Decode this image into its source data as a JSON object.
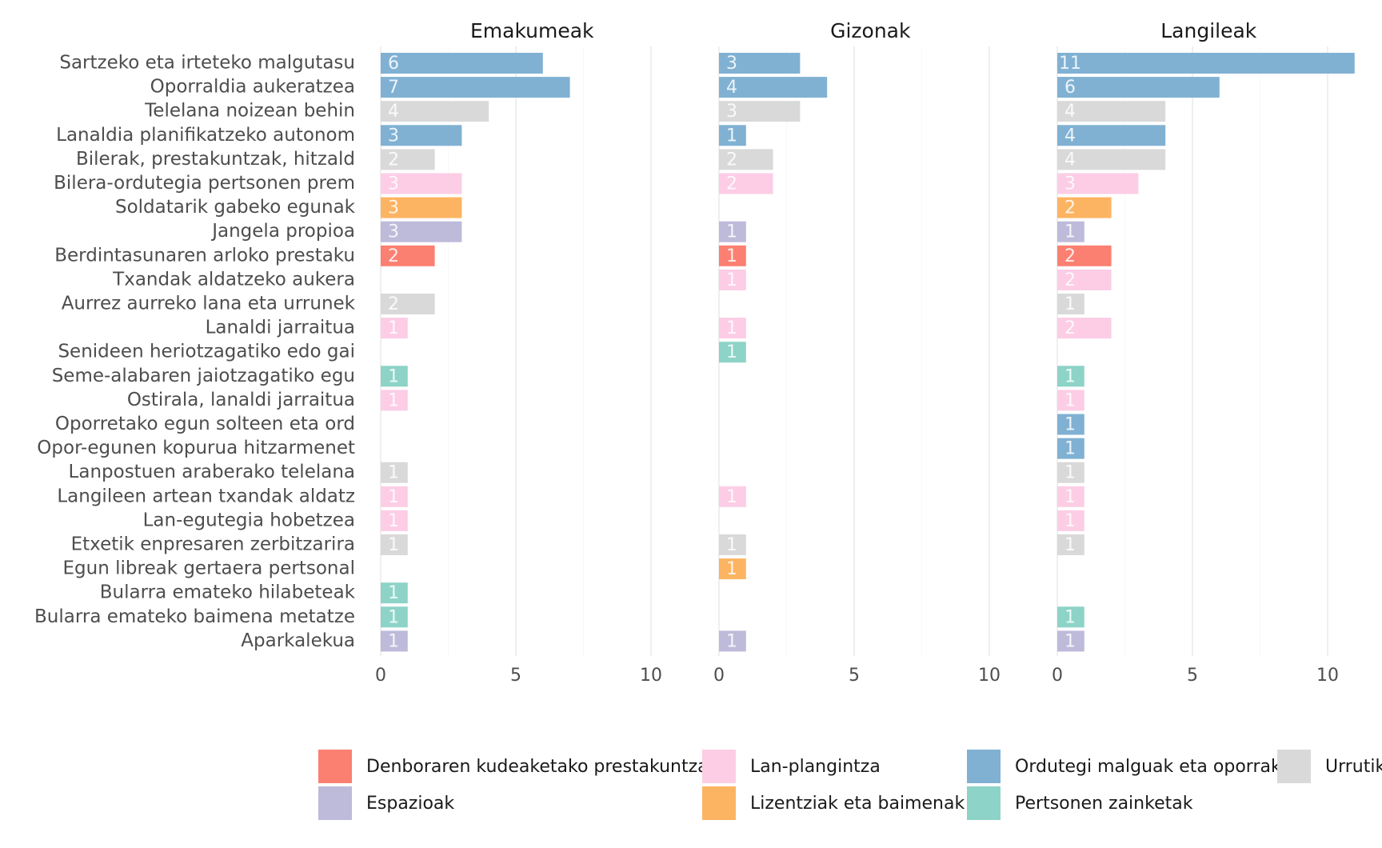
{
  "chart_data": {
    "type": "bar",
    "orientation": "horizontal",
    "grid": true,
    "xlim": [
      0,
      11
    ],
    "x_ticks": [
      0,
      5,
      10
    ],
    "legend_position": "bottom",
    "categories": [
      "Sartzeko eta irteteko malgutasu",
      "Oporraldia aukeratzea",
      "Telelana noizean behin",
      "Lanaldia planifikatzeko autonom",
      "Bilerak, prestakuntzak, hitzald",
      "Bilera-ordutegia pertsonen prem",
      "Soldatarik gabeko egunak",
      "Jangela propioa",
      "Berdintasunaren arloko prestaku",
      "Txandak aldatzeko aukera",
      "Aurrez aurreko lana eta urrunek",
      "Lanaldi jarraitua",
      "Senideen heriotzagatiko edo gai",
      "Seme-alabaren jaiotzagatiko egu",
      "Ostirala, lanaldi jarraitua",
      "Oporretako egun solteen eta ord",
      "Opor-egunen kopurua hitzarmenet",
      "Lanpostuen araberako telelana",
      "Langileen artean txandak aldatz",
      "Lan-egutegia hobetzea",
      "Etxetik enpresaren zerbitzarira",
      "Egun libreak gertaera pertsonal",
      "Bularra emateko hilabeteak",
      "Bularra emateko baimena metatze",
      "Aparkalekua"
    ],
    "category_group": [
      "ordutegi",
      "ordutegi",
      "urrutik",
      "ordutegi",
      "urrutik",
      "plan",
      "lizentzia",
      "espazio",
      "prestakuntza",
      "plan",
      "urrutik",
      "plan",
      "zainketa",
      "zainketa",
      "plan",
      "ordutegi",
      "ordutegi",
      "urrutik",
      "plan",
      "plan",
      "urrutik",
      "lizentzia",
      "zainketa",
      "zainketa",
      "espazio"
    ],
    "groups": [
      {
        "id": "prestakuntza",
        "name": "Denboraren kudeaketako prestakuntza",
        "color": "#FB8072"
      },
      {
        "id": "espazio",
        "name": "Espazioak",
        "color": "#BEBADA"
      },
      {
        "id": "plan",
        "name": "Lan-plangintza",
        "color": "#FCCDE5"
      },
      {
        "id": "lizentzia",
        "name": "Lizentziak eta baimenak",
        "color": "#FDB462"
      },
      {
        "id": "ordutegi",
        "name": "Ordutegi malguak eta oporrak",
        "color": "#80B1D3"
      },
      {
        "id": "zainketa",
        "name": "Pertsonen zainketak",
        "color": "#8DD3C7"
      },
      {
        "id": "urrutik",
        "name": "Urrutik",
        "color": "#D9D9D9"
      }
    ],
    "facets": [
      {
        "title": "Emakumeak",
        "values": [
          6,
          7,
          4,
          3,
          2,
          3,
          3,
          3,
          2,
          null,
          2,
          1,
          null,
          1,
          1,
          null,
          null,
          1,
          1,
          1,
          1,
          null,
          1,
          1,
          1
        ]
      },
      {
        "title": "Gizonak",
        "values": [
          3,
          4,
          3,
          1,
          2,
          2,
          null,
          1,
          1,
          1,
          null,
          1,
          1,
          null,
          null,
          null,
          null,
          null,
          1,
          null,
          1,
          1,
          null,
          null,
          1
        ]
      },
      {
        "title": "Langileak",
        "values": [
          11,
          6,
          4,
          4,
          4,
          3,
          2,
          1,
          2,
          2,
          1,
          2,
          null,
          1,
          1,
          1,
          1,
          1,
          1,
          1,
          1,
          null,
          null,
          1,
          1
        ]
      }
    ]
  }
}
